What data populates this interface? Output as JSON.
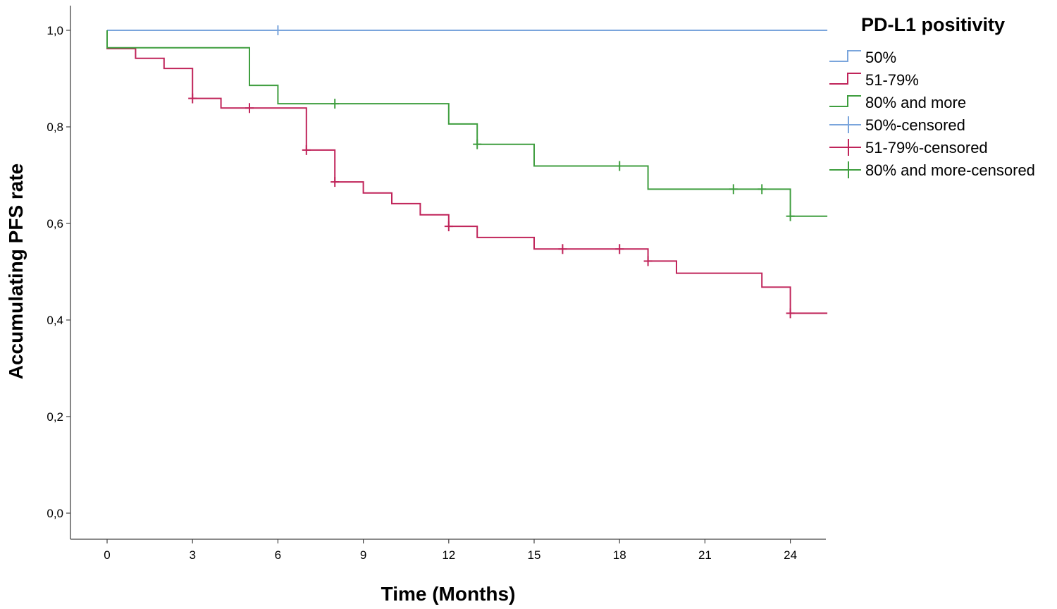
{
  "chart_data": {
    "type": "line",
    "subtype": "kaplan-meier-step",
    "xlabel": "Time (Months)",
    "ylabel": "Accumulating PFS rate",
    "x_ticks": [
      0,
      3,
      6,
      9,
      12,
      15,
      18,
      21,
      24
    ],
    "y_ticks": [
      "0,0",
      "0,2",
      "0,4",
      "0,6",
      "0,8",
      "1,0"
    ],
    "y_tick_values": [
      0,
      0.2,
      0.4,
      0.6,
      0.8,
      1.0
    ],
    "xlim": [
      -0.5,
      25.5
    ],
    "ylim": [
      -0.05,
      1.05
    ],
    "grid": false,
    "legend": {
      "title": "PD-L1 positivity",
      "placement": "top-right",
      "entries": [
        {
          "label": "50%",
          "kind": "step",
          "color": "#7aa5dc"
        },
        {
          "label": "51-79%",
          "kind": "step",
          "color": "#c0245a"
        },
        {
          "label": "80% and more",
          "kind": "step",
          "color": "#3f9e3f"
        },
        {
          "label": "50%-censored",
          "kind": "censor",
          "color": "#7aa5dc"
        },
        {
          "label": "51-79%-censored",
          "kind": "censor",
          "color": "#c0245a"
        },
        {
          "label": "80% and more-censored",
          "kind": "censor",
          "color": "#3f9e3f"
        }
      ]
    },
    "series": [
      {
        "name": "50%",
        "color": "#7aa5dc",
        "steps": [
          [
            0,
            1.0
          ],
          [
            25.3,
            1.0
          ]
        ],
        "censored": [
          [
            6,
            1.0
          ]
        ]
      },
      {
        "name": "51-79%",
        "color": "#c0245a",
        "steps": [
          [
            0,
            1.0
          ],
          [
            0,
            0.962
          ],
          [
            1,
            0.962
          ],
          [
            1,
            0.942
          ],
          [
            2,
            0.942
          ],
          [
            2,
            0.921
          ],
          [
            3,
            0.921
          ],
          [
            3,
            0.859
          ],
          [
            4,
            0.859
          ],
          [
            4,
            0.839
          ],
          [
            7,
            0.839
          ],
          [
            7,
            0.817
          ],
          [
            7,
            0.817
          ],
          [
            7,
            0.752
          ],
          [
            8,
            0.752
          ],
          [
            8,
            0.686
          ],
          [
            9,
            0.686
          ],
          [
            9,
            0.663
          ],
          [
            10,
            0.663
          ],
          [
            10,
            0.641
          ],
          [
            11,
            0.641
          ],
          [
            11,
            0.618
          ],
          [
            12,
            0.618
          ],
          [
            12,
            0.594
          ],
          [
            13,
            0.594
          ],
          [
            13,
            0.571
          ],
          [
            15,
            0.571
          ],
          [
            15,
            0.547
          ],
          [
            19,
            0.547
          ],
          [
            19,
            0.522
          ],
          [
            20,
            0.522
          ],
          [
            20,
            0.497
          ],
          [
            23,
            0.497
          ],
          [
            23,
            0.468
          ],
          [
            24,
            0.468
          ],
          [
            24,
            0.414
          ],
          [
            25.3,
            0.414
          ]
        ],
        "censored": [
          [
            3,
            0.859
          ],
          [
            5,
            0.839
          ],
          [
            7,
            0.752
          ],
          [
            8,
            0.686
          ],
          [
            12,
            0.594
          ],
          [
            16,
            0.547
          ],
          [
            18,
            0.547
          ],
          [
            19,
            0.522
          ],
          [
            24,
            0.414
          ]
        ]
      },
      {
        "name": "80% and more",
        "color": "#3f9e3f",
        "steps": [
          [
            0,
            1.0
          ],
          [
            0,
            0.964
          ],
          [
            5,
            0.964
          ],
          [
            5,
            0.886
          ],
          [
            6,
            0.886
          ],
          [
            6,
            0.848
          ],
          [
            12,
            0.848
          ],
          [
            12,
            0.806
          ],
          [
            13,
            0.806
          ],
          [
            13,
            0.764
          ],
          [
            15,
            0.764
          ],
          [
            15,
            0.719
          ],
          [
            19,
            0.719
          ],
          [
            19,
            0.671
          ],
          [
            24,
            0.671
          ],
          [
            24,
            0.615
          ],
          [
            25.3,
            0.615
          ]
        ],
        "censored": [
          [
            8,
            0.848
          ],
          [
            13,
            0.764
          ],
          [
            18,
            0.719
          ],
          [
            22,
            0.671
          ],
          [
            23,
            0.671
          ],
          [
            24,
            0.615
          ]
        ]
      }
    ]
  }
}
